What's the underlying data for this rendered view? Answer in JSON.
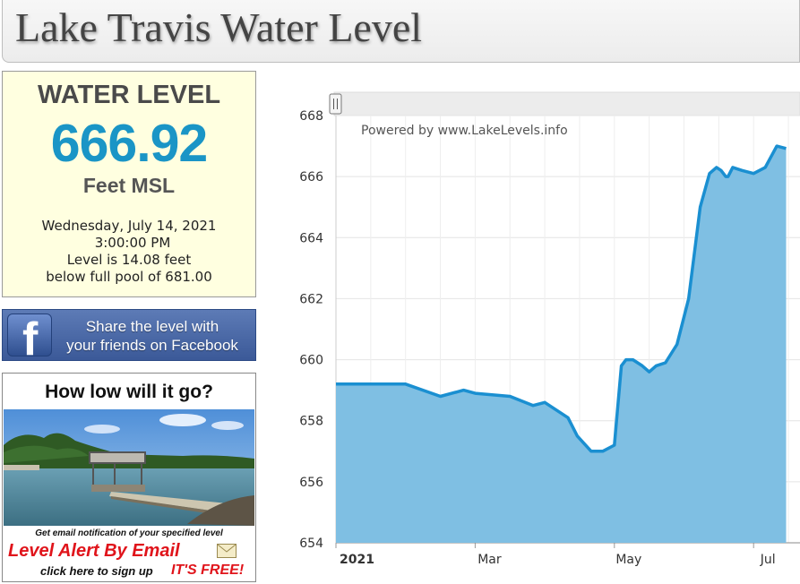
{
  "page": {
    "title": "Lake Travis Water Level"
  },
  "level_panel": {
    "label": "WATER LEVEL",
    "value": "666.92",
    "unit": "Feet MSL",
    "date": "Wednesday, July 14, 2021",
    "time": "3:00:00 PM",
    "diff_line": "Level is 14.08 feet",
    "pool_line": "below full pool of 681.00"
  },
  "facebook_banner": {
    "logo_letter": "f",
    "line1": "Share the level with",
    "line2": "your friends on Facebook"
  },
  "alert_ad": {
    "question": "How low will it go?",
    "notice": "Get email notification of your specified level",
    "headline": "Level Alert By Email",
    "signup": "click here to sign up",
    "free": "IT'S FREE!"
  },
  "chart_data": {
    "type": "area",
    "title": "",
    "credit": "Powered by www.LakeLevels.info",
    "xlabel": "",
    "ylabel": "",
    "ylim": [
      654,
      668
    ],
    "yticks": [
      654,
      656,
      658,
      660,
      662,
      664,
      666,
      668
    ],
    "xticks": [
      "2021",
      "Mar",
      "May",
      "Jul"
    ],
    "x": [
      0,
      15,
      30,
      45,
      55,
      60,
      75,
      85,
      90,
      100,
      104,
      110,
      115,
      120,
      123,
      125,
      128,
      132,
      135,
      138,
      142,
      147,
      152,
      157,
      161,
      164,
      166,
      168,
      169,
      171,
      175,
      180,
      185,
      190,
      194
    ],
    "values": [
      659.2,
      659.2,
      659.2,
      658.8,
      659.0,
      658.9,
      658.8,
      658.5,
      658.6,
      658.1,
      657.5,
      657.0,
      657.0,
      657.2,
      659.8,
      660.0,
      660.0,
      659.8,
      659.6,
      659.8,
      659.9,
      660.5,
      662.0,
      665.0,
      666.1,
      666.3,
      666.2,
      666.0,
      666.0,
      666.3,
      666.2,
      666.1,
      666.3,
      667.0,
      666.92
    ],
    "xrange": [
      0,
      200
    ],
    "grid": true,
    "colors": {
      "line": "#1a8fd1",
      "fill": "#7fbfe3"
    }
  }
}
